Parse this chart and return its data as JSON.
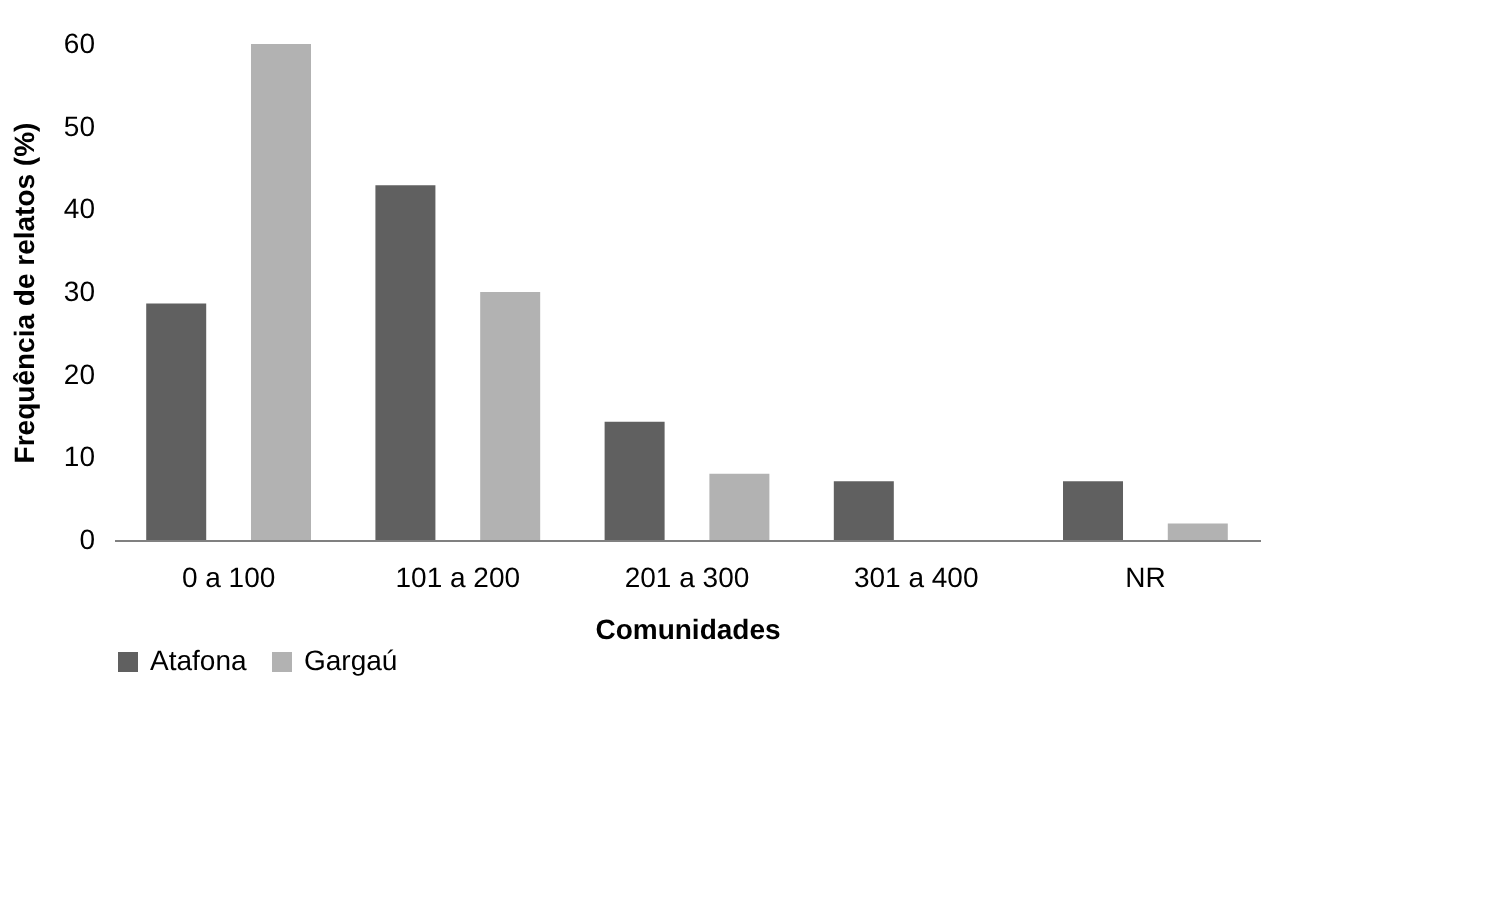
{
  "chart_data": {
    "type": "bar",
    "xlabel": "Comunidades",
    "ylabel": "Frequência de relatos (%)",
    "categories": [
      "0 a 100",
      "101 a 200",
      "201 a 300",
      "301 a 400",
      "NR"
    ],
    "series": [
      {
        "name": "Atafona",
        "color": "#606060",
        "values": [
          28.6,
          42.9,
          14.3,
          7.1,
          7.1
        ]
      },
      {
        "name": "Gargaú",
        "color": "#b2b2b2",
        "values": [
          60,
          30,
          8,
          0,
          2
        ]
      }
    ],
    "ylim": [
      0,
      60
    ],
    "yticks": [
      0,
      10,
      20,
      30,
      40,
      50,
      60
    ],
    "grid": false,
    "legend": "bottom"
  }
}
